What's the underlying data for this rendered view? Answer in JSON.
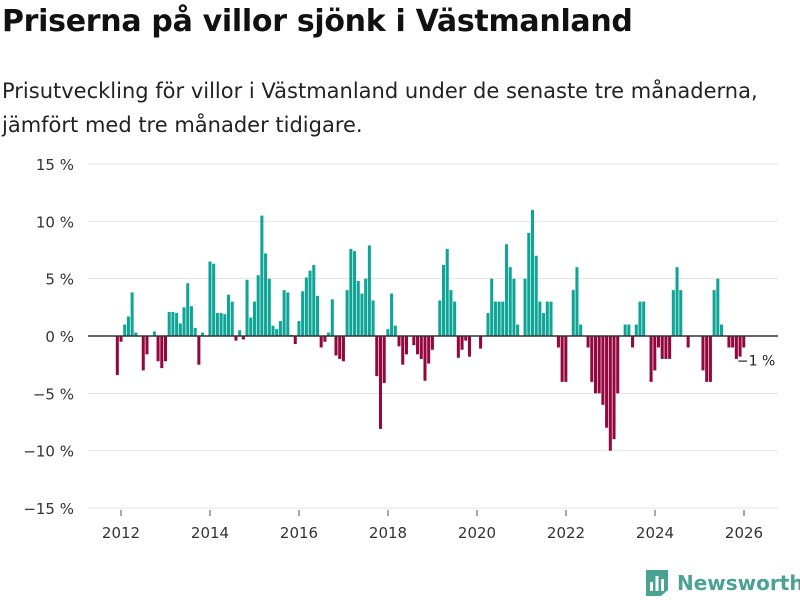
{
  "title": "Priserna på villor sjönk i Västmanland",
  "subtitle": "Prisutveckling för villor i Västmanland under de senaste tre månaderna, jämfört med tre månader tidigare.",
  "brand": "Newsworthy",
  "colors": {
    "positive": "#0ea597",
    "negative": "#93063e",
    "grid": "#e3e3e3",
    "axis": "#333333",
    "brand": "#4aa392"
  },
  "chart_data": {
    "type": "bar",
    "x_start": 2011.917,
    "x_step": 0.0833,
    "ylim": [
      -15,
      15
    ],
    "xlim": [
      2011.25,
      2026.95
    ],
    "ytick_values": [
      15,
      10,
      5,
      0,
      -5,
      -10,
      -15
    ],
    "ytick_labels": [
      "15 %",
      "10 %",
      "5 %",
      "0 %",
      "−5 %",
      "−10 %",
      "−15 %"
    ],
    "xtick_values": [
      2012,
      2014,
      2016,
      2018,
      2020,
      2022,
      2024,
      2026
    ],
    "xtick_labels": [
      "2012",
      "2014",
      "2016",
      "2018",
      "2020",
      "2022",
      "2024",
      "2026"
    ],
    "annotation": {
      "text": "−1 %",
      "index": 165
    },
    "values": [
      -3.4,
      -0.5,
      1,
      1.7,
      3.8,
      0.3,
      0,
      -3,
      -1.6,
      0,
      0.4,
      -2.2,
      -2.8,
      -2.2,
      2.1,
      2.1,
      2,
      1.1,
      2.5,
      4.6,
      2.6,
      0.7,
      -2.5,
      0.3,
      0,
      6.5,
      6.3,
      2,
      2,
      1.9,
      3.6,
      3,
      -0.4,
      0.5,
      -0.3,
      4.9,
      1.6,
      3,
      5.3,
      10.5,
      7.2,
      5,
      0.9,
      0.6,
      1.3,
      4,
      3.8,
      0.1,
      -0.7,
      1.3,
      3.9,
      5.1,
      5.7,
      6.2,
      3.5,
      -1,
      -0.5,
      0.3,
      3.2,
      -1.7,
      -2,
      -2.2,
      4,
      7.6,
      7.4,
      4.8,
      3.7,
      5,
      7.9,
      3.1,
      -3.5,
      -8.1,
      -4.1,
      0.6,
      3.7,
      0.9,
      -0.9,
      -2.5,
      -1.6,
      0,
      -0.8,
      -1.6,
      -2,
      -3.9,
      -2.4,
      -1.2,
      0,
      3.1,
      6.2,
      7.6,
      4,
      3,
      -1.9,
      -1.2,
      -0.4,
      -1.8,
      0,
      0,
      -1.1,
      0,
      2,
      5,
      3,
      3,
      3,
      8,
      6,
      5,
      1,
      0,
      5,
      9,
      11,
      7,
      3,
      2,
      3,
      3,
      0,
      -1,
      -4,
      -4,
      0,
      4,
      6,
      1,
      0,
      -1,
      -4,
      -5,
      -5,
      -6,
      -8,
      -10,
      -9,
      -5,
      0,
      1,
      1,
      -1,
      1,
      3,
      3,
      0,
      -4,
      -3,
      -1,
      -2,
      -2,
      -2,
      4,
      6,
      4,
      0,
      -1,
      0,
      0,
      0,
      -3,
      -4,
      -4,
      4,
      5,
      1,
      0,
      -1,
      -1,
      -2,
      -1.8,
      -1
    ]
  }
}
